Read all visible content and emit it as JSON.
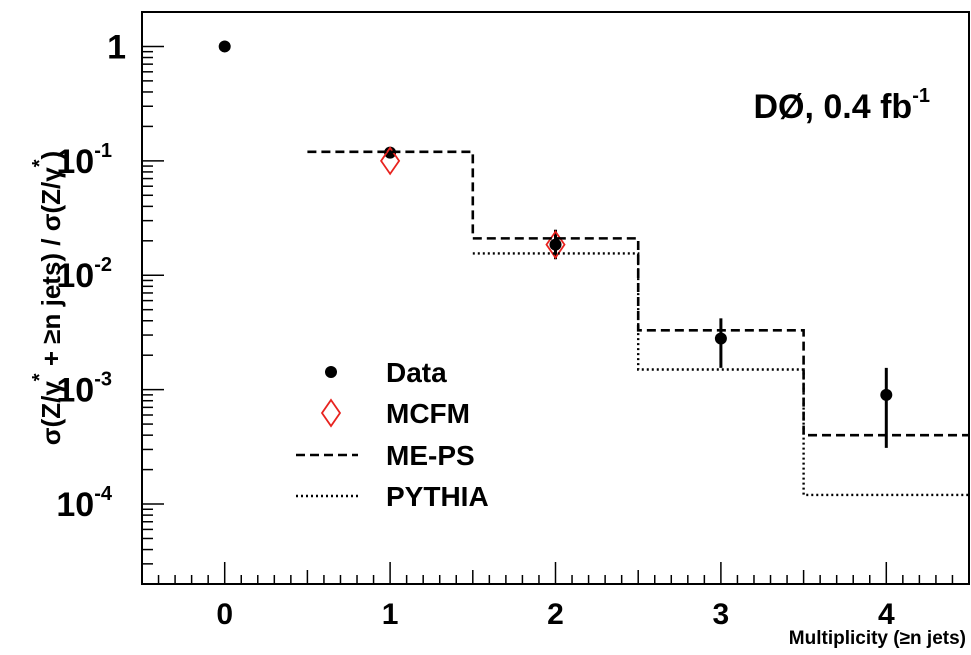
{
  "chart_data": {
    "type": "scatter",
    "y_scale": "log",
    "xlim": [
      -0.5,
      4.5
    ],
    "ylim": [
      2e-05,
      2.0
    ],
    "x_ticks": [
      "0",
      "1",
      "2",
      "3",
      "4"
    ],
    "y_ticks": [
      {
        "value": 1,
        "base": "1",
        "exp": ""
      },
      {
        "value": 0.1,
        "base": "10",
        "exp": "-1"
      },
      {
        "value": 0.01,
        "base": "10",
        "exp": "-2"
      },
      {
        "value": 0.001,
        "base": "10",
        "exp": "-3"
      },
      {
        "value": 0.0001,
        "base": "10",
        "exp": "-4"
      }
    ],
    "xlabel": "Multiplicity (≥n jets)",
    "ylabel": {
      "part1": "σ(Z/γ",
      "star1": "*",
      "part2": " + ≥n jets) / σ(Z/γ",
      "star2": "*",
      "part3": ")"
    },
    "annotation": {
      "main": "DØ, 0.4 fb",
      "sup": "-1"
    },
    "legend_position": "center-left",
    "series": [
      {
        "name": "Data",
        "kind": "points",
        "color": "#000000",
        "points": [
          {
            "x": 0,
            "y": 1.0
          },
          {
            "x": 1,
            "y": 0.118,
            "err_lo": 0.11,
            "err_hi": 0.127
          },
          {
            "x": 2,
            "y": 0.0185,
            "err_lo": 0.0138,
            "err_hi": 0.025
          },
          {
            "x": 3,
            "y": 0.0028,
            "err_lo": 0.00155,
            "err_hi": 0.0042
          },
          {
            "x": 4,
            "y": 0.0009,
            "err_lo": 0.00031,
            "err_hi": 0.00155
          }
        ]
      },
      {
        "name": "MCFM",
        "kind": "diamonds",
        "color": "#e8231f",
        "points": [
          {
            "x": 1,
            "y": 0.1
          },
          {
            "x": 2,
            "y": 0.0185
          }
        ]
      },
      {
        "name": "ME-PS",
        "kind": "step",
        "style": "dashed",
        "color": "#000000",
        "bins": [
          {
            "x0": 0.5,
            "x1": 1.5,
            "y": 0.12
          },
          {
            "x0": 1.5,
            "x1": 2.5,
            "y": 0.021
          },
          {
            "x0": 2.5,
            "x1": 3.5,
            "y": 0.0033
          },
          {
            "x0": 3.5,
            "x1": 4.5,
            "y": 0.0004
          }
        ]
      },
      {
        "name": "PYTHIA",
        "kind": "step",
        "style": "dotted",
        "color": "#000000",
        "bins": [
          {
            "x0": 1.5,
            "x1": 2.5,
            "y": 0.0155
          },
          {
            "x0": 2.5,
            "x1": 3.5,
            "y": 0.0015
          },
          {
            "x0": 3.5,
            "x1": 4.5,
            "y": 0.00012
          }
        ]
      }
    ]
  }
}
